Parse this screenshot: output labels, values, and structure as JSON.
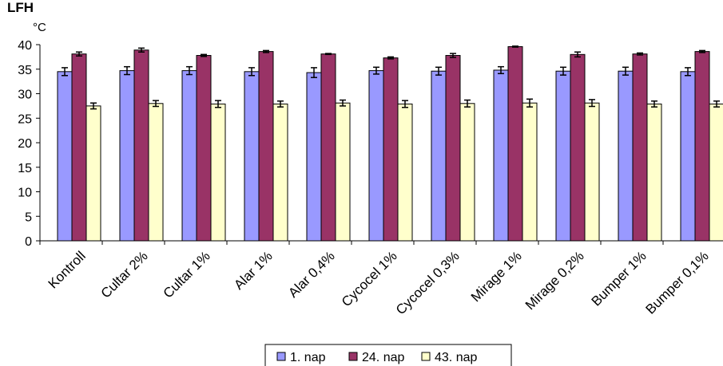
{
  "chart_data": {
    "type": "bar",
    "title": "LFH",
    "ylabel": "°C",
    "xlabel": "",
    "ylim": [
      0,
      40
    ],
    "yticks": [
      0,
      5,
      10,
      15,
      20,
      25,
      30,
      35,
      40
    ],
    "grid": false,
    "legend_position": "bottom",
    "categories": [
      "Kontroll",
      "Cultar 2%",
      "Cultar 1%",
      "Alar 1%",
      "Alar 0,4%",
      "Cycocel 1%",
      "Cycocel 0,3%",
      "Mirage 1%",
      "Mirage 0,2%",
      "Bumper 1%",
      "Bumper 0,1%"
    ],
    "series": [
      {
        "name": "1. nap",
        "color": "#9999ff",
        "values": [
          34.5,
          34.7,
          34.7,
          34.5,
          34.3,
          34.7,
          34.6,
          34.8,
          34.6,
          34.6,
          34.5
        ],
        "errors": [
          0.8,
          0.8,
          0.8,
          0.8,
          1.0,
          0.7,
          0.8,
          0.7,
          0.8,
          0.8,
          0.8
        ]
      },
      {
        "name": "24. nap",
        "color": "#993366",
        "values": [
          38.1,
          38.9,
          37.8,
          38.6,
          38.1,
          37.3,
          37.8,
          39.6,
          38.0,
          38.1,
          38.6
        ],
        "errors": [
          0.4,
          0.4,
          0.2,
          0.2,
          0.1,
          0.2,
          0.4,
          0.1,
          0.5,
          0.2,
          0.2
        ]
      },
      {
        "name": "43. nap",
        "color": "#ffffcc",
        "values": [
          27.5,
          28.0,
          27.9,
          27.9,
          28.1,
          27.9,
          28.0,
          28.1,
          28.1,
          27.9,
          27.9
        ],
        "errors": [
          0.6,
          0.6,
          0.7,
          0.6,
          0.6,
          0.7,
          0.7,
          0.8,
          0.7,
          0.6,
          0.6
        ]
      }
    ]
  }
}
